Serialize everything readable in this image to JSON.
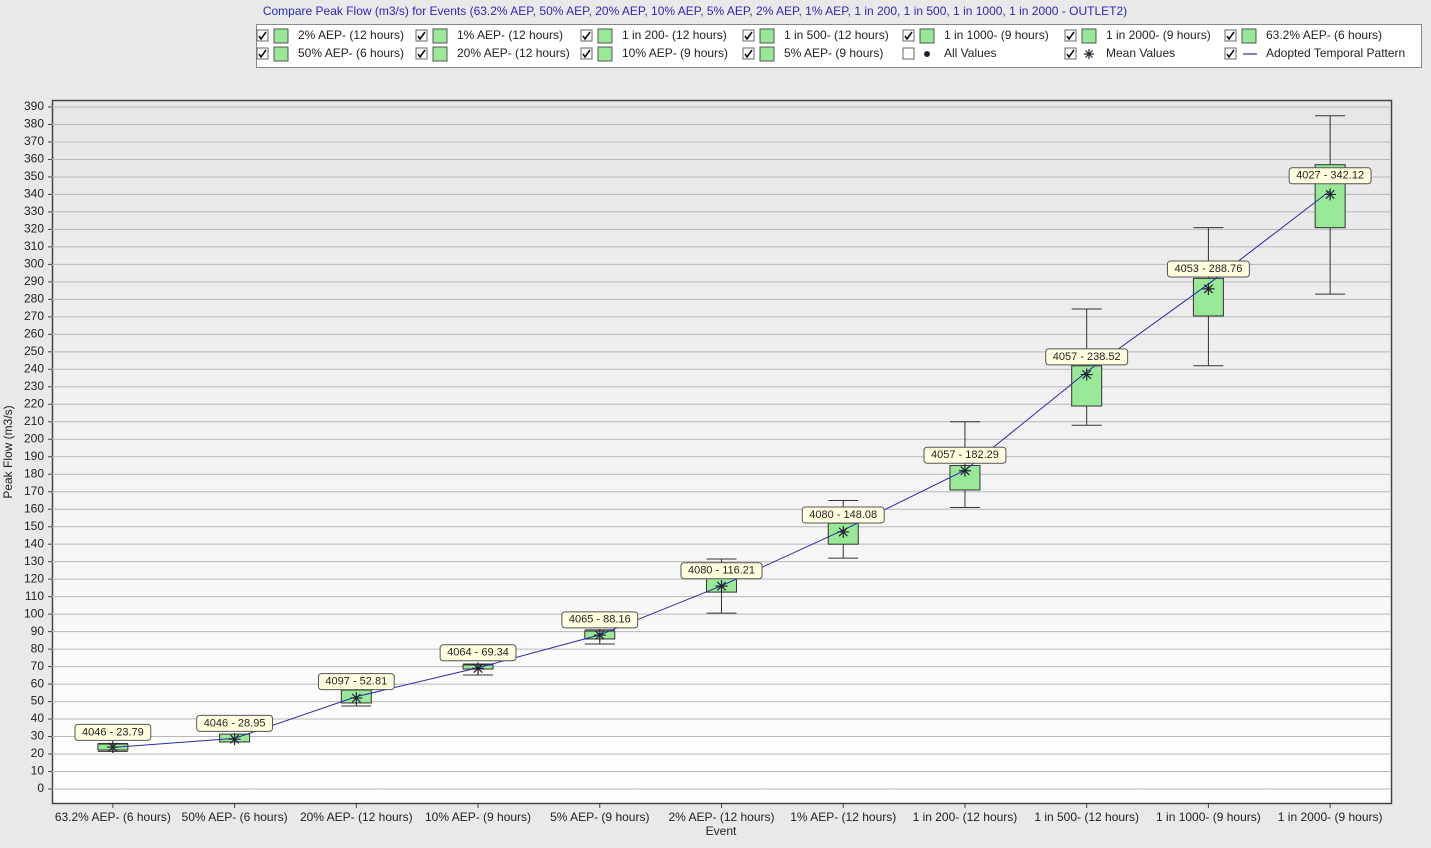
{
  "chart_data": {
    "type": "box",
    "title": "Compare Peak Flow (m3/s) for Events (63.2% AEP, 50% AEP, 20% AEP, 10% AEP, 5% AEP, 2% AEP, 1% AEP, 1 in 200, 1 in 500, 1 in 1000, 1 in 2000 - OUTLET2)",
    "x_label": "Event",
    "y_label": "Peak Flow (m3/s)",
    "categories": [
      "63.2% AEP- (6 hours)",
      "50% AEP- (6 hours)",
      "20% AEP- (12 hours)",
      "10% AEP- (9 hours)",
      "5% AEP- (9 hours)",
      "2% AEP- (12 hours)",
      "1% AEP- (12 hours)",
      "1 in 200- (12 hours)",
      "1 in 500- (12 hours)",
      "1 in 1000- (9 hours)",
      "1 in 2000- (9 hours)"
    ],
    "boxes": {
      "color": "#98e898",
      "min": [
        21.5,
        27,
        47.5,
        65.2,
        82.9,
        100.6,
        132,
        161,
        208,
        242,
        283
      ],
      "q1": [
        22.3,
        26.9,
        49.2,
        68.6,
        85.8,
        112.6,
        140,
        171,
        219,
        270.5,
        321
      ],
      "q3": [
        25.7,
        31.4,
        56.6,
        70.9,
        90.3,
        120.6,
        152,
        185,
        242,
        292,
        357
      ],
      "max": [
        26,
        31,
        57,
        71.5,
        91,
        131.5,
        165,
        210,
        274.5,
        321,
        385
      ]
    },
    "mean": {
      "values": [
        24,
        28.5,
        52,
        69,
        88,
        116,
        147,
        182,
        237,
        286,
        340
      ]
    },
    "adopted": {
      "color": "#2a2aa8",
      "values": [
        23.79,
        28.95,
        52.81,
        69.34,
        88.16,
        116.21,
        148.08,
        182.29,
        238.52,
        288.76,
        342.12
      ],
      "value_labels": [
        "4046 -  23.79",
        "4046 -  28.95",
        "4097 -  52.81",
        "4064 -  69.34",
        "4065 -  88.16",
        "4080 -  116.21",
        "4080 -  148.08",
        "4057 -  182.29",
        "4057 -  238.52",
        "4053 -  288.76",
        "4027 -  342.12"
      ]
    },
    "ylim": [
      -8,
      394
    ],
    "yticks": [
      0,
      10,
      20,
      30,
      40,
      50,
      60,
      70,
      80,
      90,
      100,
      110,
      120,
      130,
      140,
      150,
      160,
      170,
      180,
      190,
      200,
      210,
      220,
      230,
      240,
      250,
      260,
      270,
      280,
      290,
      300,
      310,
      320,
      330,
      340,
      350,
      360,
      370,
      380,
      390
    ],
    "grid": true,
    "legend": {
      "items": [
        {
          "label": "2% AEP- (12 hours)",
          "checked": true,
          "symbol": "box"
        },
        {
          "label": "1% AEP- (12 hours)",
          "checked": true,
          "symbol": "box"
        },
        {
          "label": "1 in 200- (12 hours)",
          "checked": true,
          "symbol": "box"
        },
        {
          "label": "1 in 500- (12 hours)",
          "checked": true,
          "symbol": "box"
        },
        {
          "label": "1 in 1000- (9 hours)",
          "checked": true,
          "symbol": "box"
        },
        {
          "label": "1 in 2000- (9 hours)",
          "checked": true,
          "symbol": "box"
        },
        {
          "label": "63.2% AEP- (6 hours)",
          "checked": true,
          "symbol": "box"
        },
        {
          "label": "50% AEP- (6 hours)",
          "checked": true,
          "symbol": "box"
        },
        {
          "label": "20% AEP- (12 hours)",
          "checked": true,
          "symbol": "box"
        },
        {
          "label": "10% AEP- (9 hours)",
          "checked": true,
          "symbol": "box"
        },
        {
          "label": "5% AEP- (9 hours)",
          "checked": true,
          "symbol": "box"
        },
        {
          "label": "All Values",
          "checked": false,
          "symbol": "dot"
        },
        {
          "label": "Mean Values",
          "checked": true,
          "symbol": "star"
        },
        {
          "label": "Adopted Temporal Pattern",
          "checked": true,
          "symbol": "line"
        }
      ]
    }
  }
}
